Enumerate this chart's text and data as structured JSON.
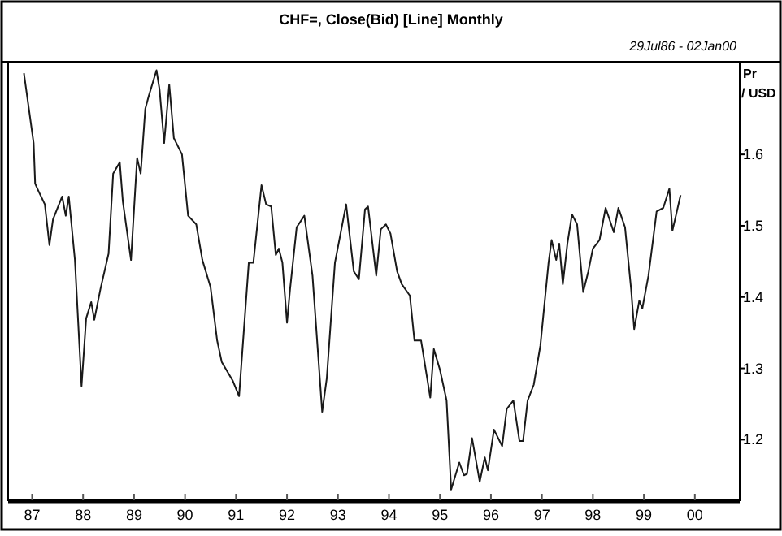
{
  "chart_data": {
    "type": "line",
    "title": "CHF=, Close(Bid) [Line] Monthly",
    "subtitle": "29Jul86 - 02Jan00",
    "ylabel": "Pr / USD",
    "x": [
      1986.84,
      1987.03,
      1987.06,
      1987.13,
      1987.25,
      1987.34,
      1987.41,
      1987.59,
      1987.66,
      1987.72,
      1987.84,
      1987.97,
      1988.06,
      1988.16,
      1988.22,
      1988.34,
      1988.5,
      1988.59,
      1988.72,
      1988.78,
      1988.94,
      1989.06,
      1989.13,
      1989.22,
      1989.28,
      1989.44,
      1989.5,
      1989.59,
      1989.69,
      1989.78,
      1989.94,
      1990.06,
      1990.22,
      1990.34,
      1990.5,
      1990.63,
      1990.72,
      1990.94,
      1991.06,
      1991.25,
      1991.34,
      1991.5,
      1991.59,
      1991.69,
      1991.78,
      1991.84,
      1991.91,
      1992.0,
      1992.06,
      1992.19,
      1992.34,
      1992.5,
      1992.69,
      1992.78,
      1992.94,
      1993.16,
      1993.31,
      1993.41,
      1993.53,
      1993.59,
      1993.75,
      1993.84,
      1993.94,
      1994.03,
      1994.16,
      1994.25,
      1994.41,
      1994.5,
      1994.63,
      1994.81,
      1994.88,
      1995.0,
      1995.13,
      1995.22,
      1995.38,
      1995.47,
      1995.53,
      1995.63,
      1995.78,
      1995.88,
      1995.94,
      1996.06,
      1996.22,
      1996.31,
      1996.44,
      1996.56,
      1996.63,
      1996.72,
      1996.84,
      1996.97,
      1997.13,
      1997.19,
      1997.28,
      1997.34,
      1997.41,
      1997.5,
      1997.59,
      1997.69,
      1997.81,
      1997.91,
      1998.0,
      1998.13,
      1998.25,
      1998.41,
      1998.5,
      1998.63,
      1998.75,
      1998.81,
      1998.91,
      1998.97,
      1999.09,
      1999.25,
      1999.38,
      1999.5,
      1999.56,
      1999.72
    ],
    "series": [
      {
        "color": "#1a1a1a",
        "values": [
          1.714,
          1.616,
          1.559,
          1.548,
          1.53,
          1.473,
          1.509,
          1.541,
          1.514,
          1.541,
          1.452,
          1.275,
          1.37,
          1.393,
          1.368,
          1.411,
          1.461,
          1.573,
          1.589,
          1.534,
          1.452,
          1.595,
          1.573,
          1.664,
          1.68,
          1.718,
          1.691,
          1.616,
          1.698,
          1.623,
          1.6,
          1.514,
          1.502,
          1.452,
          1.414,
          1.339,
          1.309,
          1.282,
          1.261,
          1.448,
          1.448,
          1.557,
          1.53,
          1.527,
          1.459,
          1.468,
          1.448,
          1.364,
          1.411,
          1.498,
          1.514,
          1.43,
          1.239,
          1.286,
          1.448,
          1.53,
          1.436,
          1.425,
          1.523,
          1.527,
          1.43,
          1.495,
          1.502,
          1.489,
          1.436,
          1.418,
          1.402,
          1.339,
          1.339,
          1.259,
          1.327,
          1.298,
          1.255,
          1.13,
          1.168,
          1.15,
          1.152,
          1.202,
          1.141,
          1.175,
          1.157,
          1.214,
          1.191,
          1.243,
          1.255,
          1.198,
          1.198,
          1.255,
          1.277,
          1.332,
          1.448,
          1.48,
          1.452,
          1.475,
          1.418,
          1.475,
          1.516,
          1.502,
          1.407,
          1.436,
          1.468,
          1.48,
          1.525,
          1.491,
          1.525,
          1.498,
          1.411,
          1.355,
          1.395,
          1.384,
          1.43,
          1.52,
          1.525,
          1.552,
          1.493,
          1.543
        ]
      }
    ],
    "xlim": [
      1986.53,
      2000.88
    ],
    "ylim": [
      1.115,
      1.73
    ],
    "xticks": [
      {
        "value": 1987,
        "label": "87"
      },
      {
        "value": 1988,
        "label": "88"
      },
      {
        "value": 1989,
        "label": "89"
      },
      {
        "value": 1990,
        "label": "90"
      },
      {
        "value": 1991,
        "label": "91"
      },
      {
        "value": 1992,
        "label": "92"
      },
      {
        "value": 1993,
        "label": "93"
      },
      {
        "value": 1994,
        "label": "94"
      },
      {
        "value": 1995,
        "label": "95"
      },
      {
        "value": 1996,
        "label": "96"
      },
      {
        "value": 1997,
        "label": "97"
      },
      {
        "value": 1998,
        "label": "98"
      },
      {
        "value": 1999,
        "label": "99"
      },
      {
        "value": 2000,
        "label": "00"
      }
    ],
    "yticks": [
      1.2,
      1.3,
      1.4,
      1.5,
      1.6
    ],
    "grid": false,
    "marker": "none",
    "line_style": "solid"
  }
}
